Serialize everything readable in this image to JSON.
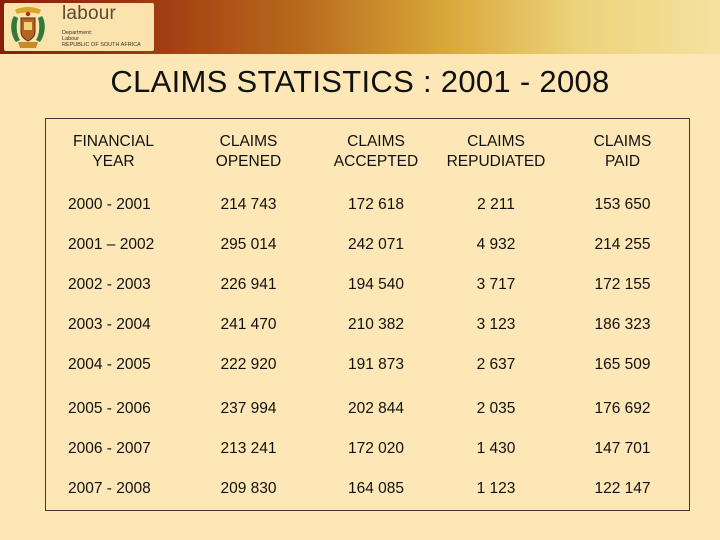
{
  "header": {
    "brand_name": "labour",
    "brand_sub_1": "Department:",
    "brand_sub_2": "Labour",
    "brand_sub_3": "REPUBLIC OF SOUTH AFRICA"
  },
  "title": "CLAIMS STATISTICS : 2001 - 2008",
  "table": {
    "headers": [
      "FINANCIAL\nYEAR",
      "CLAIMS\nOPENED",
      "CLAIMS\nACCEPTED",
      "CLAIMS\nREPUDIATED",
      "CLAIMS\nPAID"
    ],
    "rows": [
      [
        "2000 -  2001",
        "214 743",
        "172 618",
        "2 211",
        "153 650"
      ],
      [
        "2001 – 2002",
        "295 014",
        "242 071",
        "4 932",
        "214 255"
      ],
      [
        "2002 -  2003",
        "226 941",
        "194 540",
        "3 717",
        "172 155"
      ],
      [
        "2003 -  2004",
        "241 470",
        "210 382",
        "3 123",
        "186 323"
      ],
      [
        "2004 - 2005",
        "222 920",
        "191 873",
        "2 637",
        "165 509"
      ],
      [
        "2005 - 2006",
        "237 994",
        "202 844",
        "2 035",
        "176 692"
      ],
      [
        "2006 - 2007",
        "213 241",
        "172 020",
        "1 430",
        "147 701"
      ],
      [
        "2007 - 2008",
        "209 830",
        "164 085",
        "1 123",
        "122 147"
      ]
    ]
  },
  "colors": {
    "background": "#fde7b6",
    "banner_dark": "#8a1d0a",
    "banner_light": "#f4e2a0"
  }
}
